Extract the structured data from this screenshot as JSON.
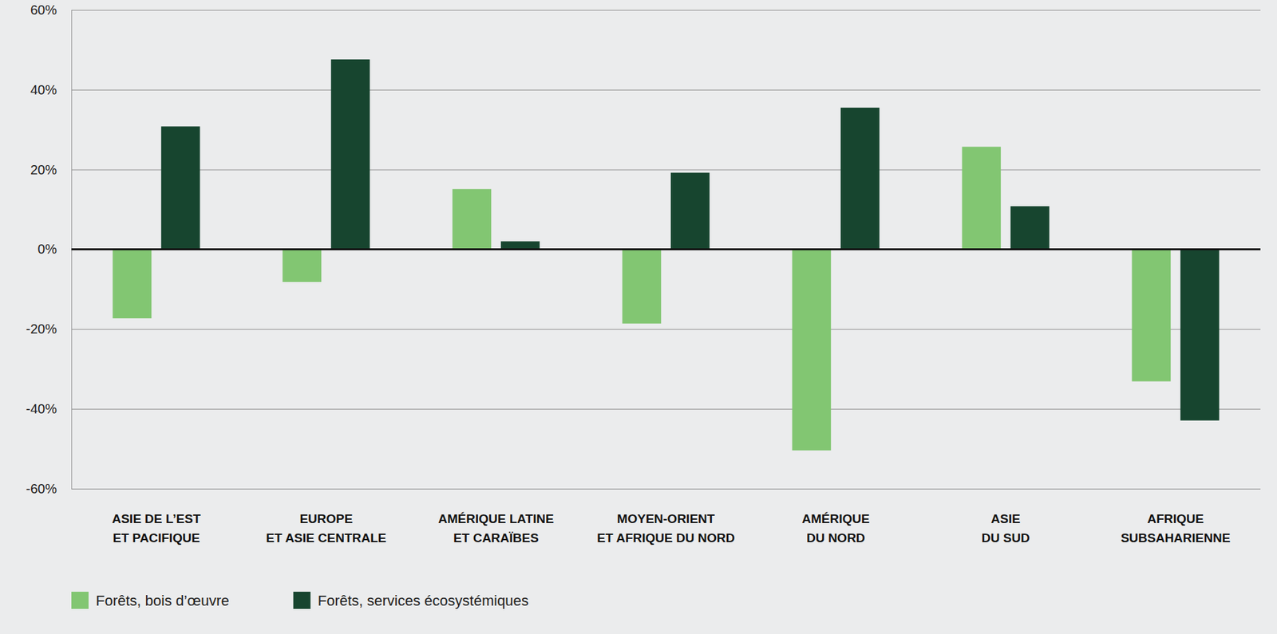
{
  "chart_data": {
    "type": "bar",
    "categories": [
      "ASIE DE L’EST\nET PACIFIQUE",
      "EUROPE\nET ASIE CENTRALE",
      "AMÉRIQUE LATINE\nET CARAÏBES",
      "MOYEN-ORIENT\nET AFRIQUE DU NORD",
      "AMÉRIQUE\nDU NORD",
      "ASIE\nDU SUD",
      "AFRIQUE\nSUBSAHARIENNE"
    ],
    "series": [
      {
        "name": "Forêts, bois d’œuvre",
        "color": "#82c672",
        "values": [
          -17.3,
          -8.2,
          15.1,
          -18.6,
          -50.4,
          25.7,
          -33.1
        ]
      },
      {
        "name": "Forêts, services écosystémiques",
        "color": "#17452f",
        "values": [
          30.8,
          47.6,
          2.0,
          19.2,
          35.5,
          10.8,
          -42.9
        ]
      }
    ],
    "ylim": [
      -60,
      60
    ],
    "yticks": [
      {
        "value": -60,
        "label": "-60%"
      },
      {
        "value": -40,
        "label": "-40%"
      },
      {
        "value": -20,
        "label": "-20%"
      },
      {
        "value": 0,
        "label": "0%"
      },
      {
        "value": 20,
        "label": "20%"
      },
      {
        "value": 40,
        "label": "40%"
      },
      {
        "value": 60,
        "label": "60%"
      }
    ],
    "grid": true,
    "legend": "bottom-left"
  }
}
